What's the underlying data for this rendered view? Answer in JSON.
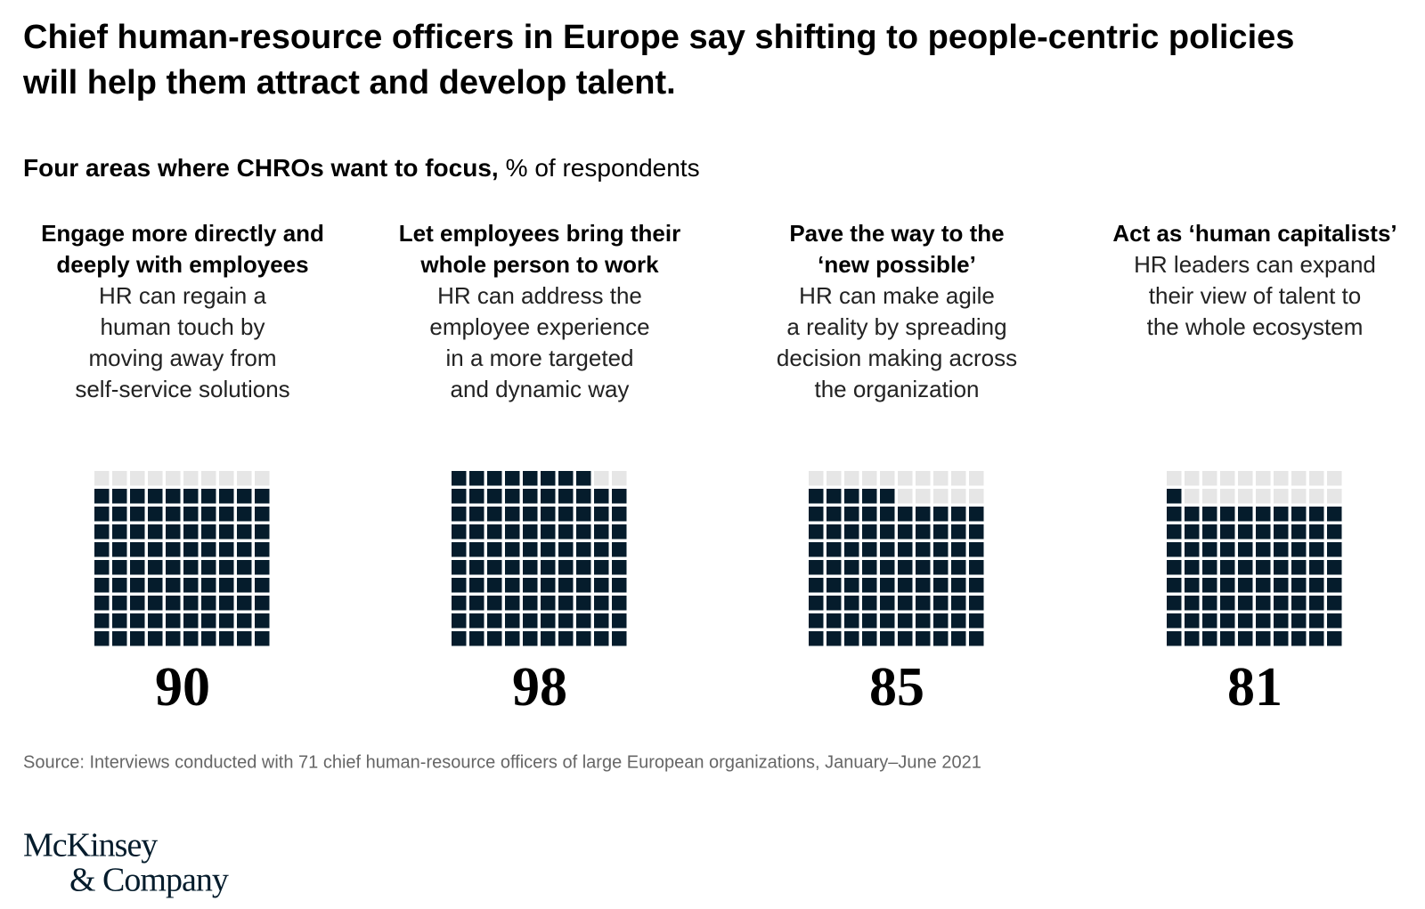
{
  "chart_data": {
    "type": "waffle",
    "title": [
      "Chief human-resource officers in Europe say shifting to people-centric policies",
      "will help them attract and develop talent."
    ],
    "subtitle": {
      "bold": "Four areas where CHROs want to focus,",
      "normal": "% of respondents"
    },
    "categories": [
      {
        "heading": [
          "Engage more directly and",
          "deeply with employees"
        ],
        "description": [
          "HR can regain a",
          "human touch by",
          "moving away from",
          "self-service solutions"
        ]
      },
      {
        "heading": [
          "Let employees bring their",
          "whole person to work"
        ],
        "description": [
          "HR can address the",
          "employee experience",
          "in a more targeted",
          "and dynamic way"
        ]
      },
      {
        "heading": [
          "Pave the way to the",
          "‘new possible’"
        ],
        "description": [
          "HR can make agile",
          "a reality by spreading",
          "decision making across",
          "the organization"
        ]
      },
      {
        "heading": [
          "Act as ‘human capitalists’"
        ],
        "description": [
          "HR leaders can expand",
          "their view of talent to",
          "the whole ecosystem"
        ]
      }
    ],
    "values": [
      90,
      98,
      85,
      81
    ],
    "color": "#051c2c",
    "empty_color": "#e6e6e6",
    "source": "Source: Interviews conducted with 71 chief human-resource officers of large European organizations, January–June 2021",
    "logo": [
      "McKinsey",
      "& Company"
    ]
  }
}
